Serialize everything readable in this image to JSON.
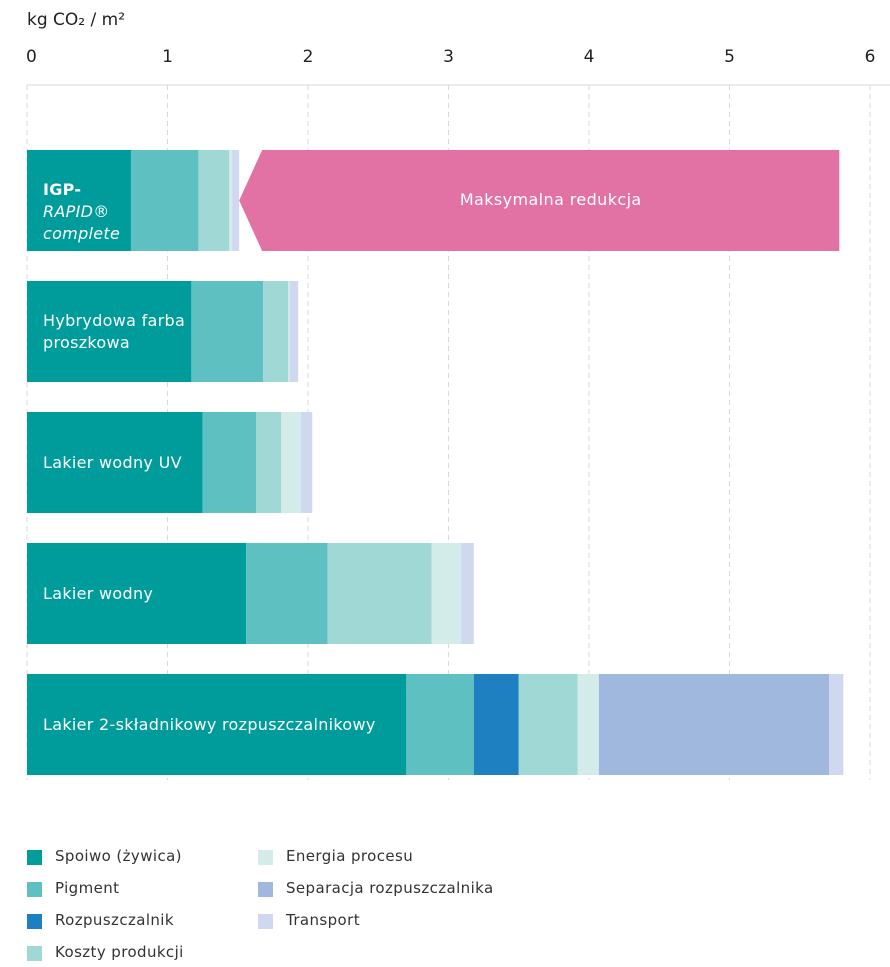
{
  "chart_data": {
    "type": "stacked-barh",
    "x_label": "kg CO₂ / m²",
    "categories": [
      "IGP-RAPID® complete",
      "Hybrydowa farba proszkowa",
      "Lakier wodny UV",
      "Lakier wodny",
      "Lakier 2-składnikowy rozpuszczalnikowy"
    ],
    "series": [
      {
        "name": "Spoiwo (żywica)",
        "color": "#009c9c",
        "values": [
          0.74,
          1.17,
          1.25,
          1.56,
          2.7
        ]
      },
      {
        "name": "Pigment",
        "color": "#5fc0c2",
        "values": [
          0.48,
          0.51,
          0.38,
          0.58,
          0.48
        ]
      },
      {
        "name": "Rozpuszczalnik",
        "color": "#1e7fc1",
        "values": [
          null,
          null,
          null,
          null,
          0.32
        ]
      },
      {
        "name": "Koszty produkcji",
        "color": "#a0d8d5",
        "values": [
          0.22,
          0.18,
          0.18,
          0.74,
          0.42
        ]
      },
      {
        "name": "Energia procesu",
        "color": "#d3ecea",
        "values": [
          0.02,
          0.01,
          0.14,
          0.21,
          0.15
        ]
      },
      {
        "name": "Separacja rozpuszczalnika",
        "color": "#a0b8de",
        "values": [
          null,
          null,
          null,
          null,
          1.64
        ]
      },
      {
        "name": "Transport",
        "color": "#cfd8ee",
        "values": [
          0.05,
          0.06,
          0.08,
          0.09,
          0.1
        ]
      }
    ],
    "annotation": {
      "text": "Maksymalna redukcja",
      "color": "#e172a3"
    },
    "xlim": [
      0,
      6
    ],
    "xticks": [
      0,
      1,
      2,
      3,
      4,
      5,
      6
    ],
    "grid": true
  }
}
